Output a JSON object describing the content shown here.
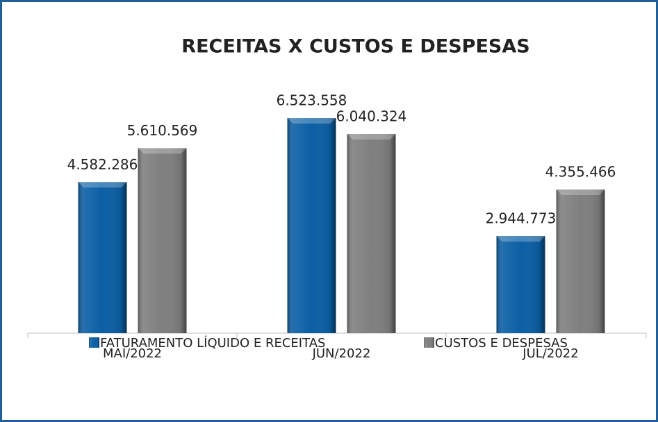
{
  "chart_data": {
    "type": "bar",
    "title": "RECEITAS X CUSTOS E DESPESAS",
    "categories": [
      "MAI/2022",
      "JUN/2022",
      "JUL/2022"
    ],
    "series": [
      {
        "name": "FATURAMENTO LÍQUIDO E RECEITAS",
        "color": "#0b5fa5",
        "values": [
          4582286,
          6523558,
          2944773
        ],
        "value_labels": [
          "4.582.286",
          "6.523.558",
          "2.944.773"
        ]
      },
      {
        "name": "CUSTOS E DESPESAS",
        "color": "#7f7f7f",
        "values": [
          5610569,
          6040324,
          4355466
        ],
        "value_labels": [
          "5.610.569",
          "6.040.324",
          "4.355.466"
        ]
      }
    ],
    "ylim": [
      0,
      7000000
    ],
    "grid": false,
    "legend": "bottom"
  }
}
